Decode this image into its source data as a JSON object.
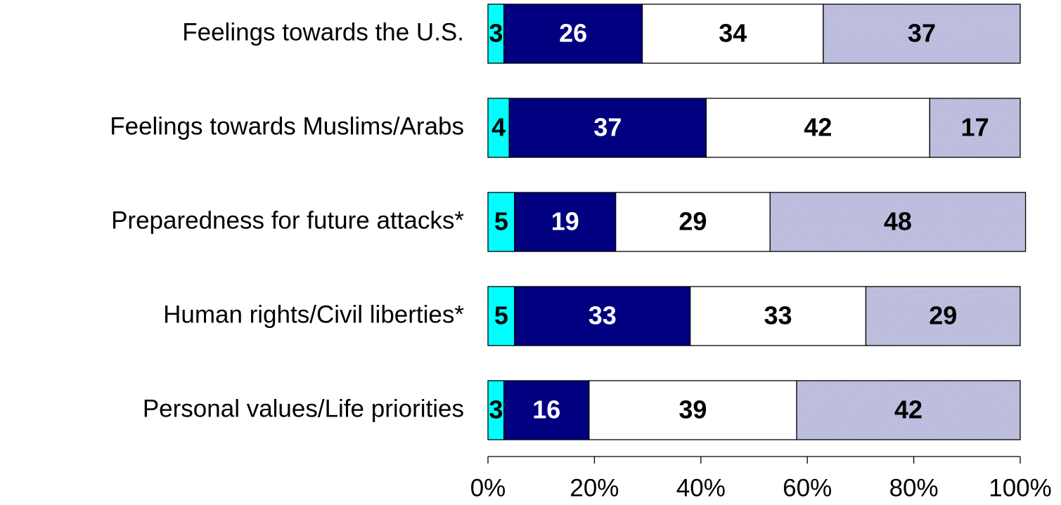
{
  "chart_data": {
    "type": "stacked-barh",
    "categories": [
      "Feelings towards the U.S.",
      "Feelings towards Muslims/Arabs",
      "Preparedness for future attacks*",
      "Human rights/Civil liberties*",
      "Personal values/Life priorities"
    ],
    "series": [
      {
        "color": "#00ffff",
        "label_color": "#000000",
        "values": [
          3,
          4,
          5,
          5,
          3
        ]
      },
      {
        "color": "#000080",
        "label_color": "#ffffff",
        "values": [
          26,
          37,
          19,
          33,
          16
        ]
      },
      {
        "color": "#ffffff",
        "label_color": "#000000",
        "values": [
          34,
          42,
          29,
          33,
          39
        ]
      },
      {
        "color": "#c8c8e6",
        "label_color": "#000000",
        "hatch": true,
        "values": [
          37,
          17,
          48,
          29,
          42
        ]
      }
    ],
    "xlim": [
      0,
      100
    ],
    "xticks": [
      {
        "value": 0,
        "label": "0%"
      },
      {
        "value": 20,
        "label": "20%"
      },
      {
        "value": 40,
        "label": "40%"
      },
      {
        "value": 60,
        "label": "60%"
      },
      {
        "value": 80,
        "label": "80%"
      },
      {
        "value": 100,
        "label": "100%"
      }
    ]
  }
}
